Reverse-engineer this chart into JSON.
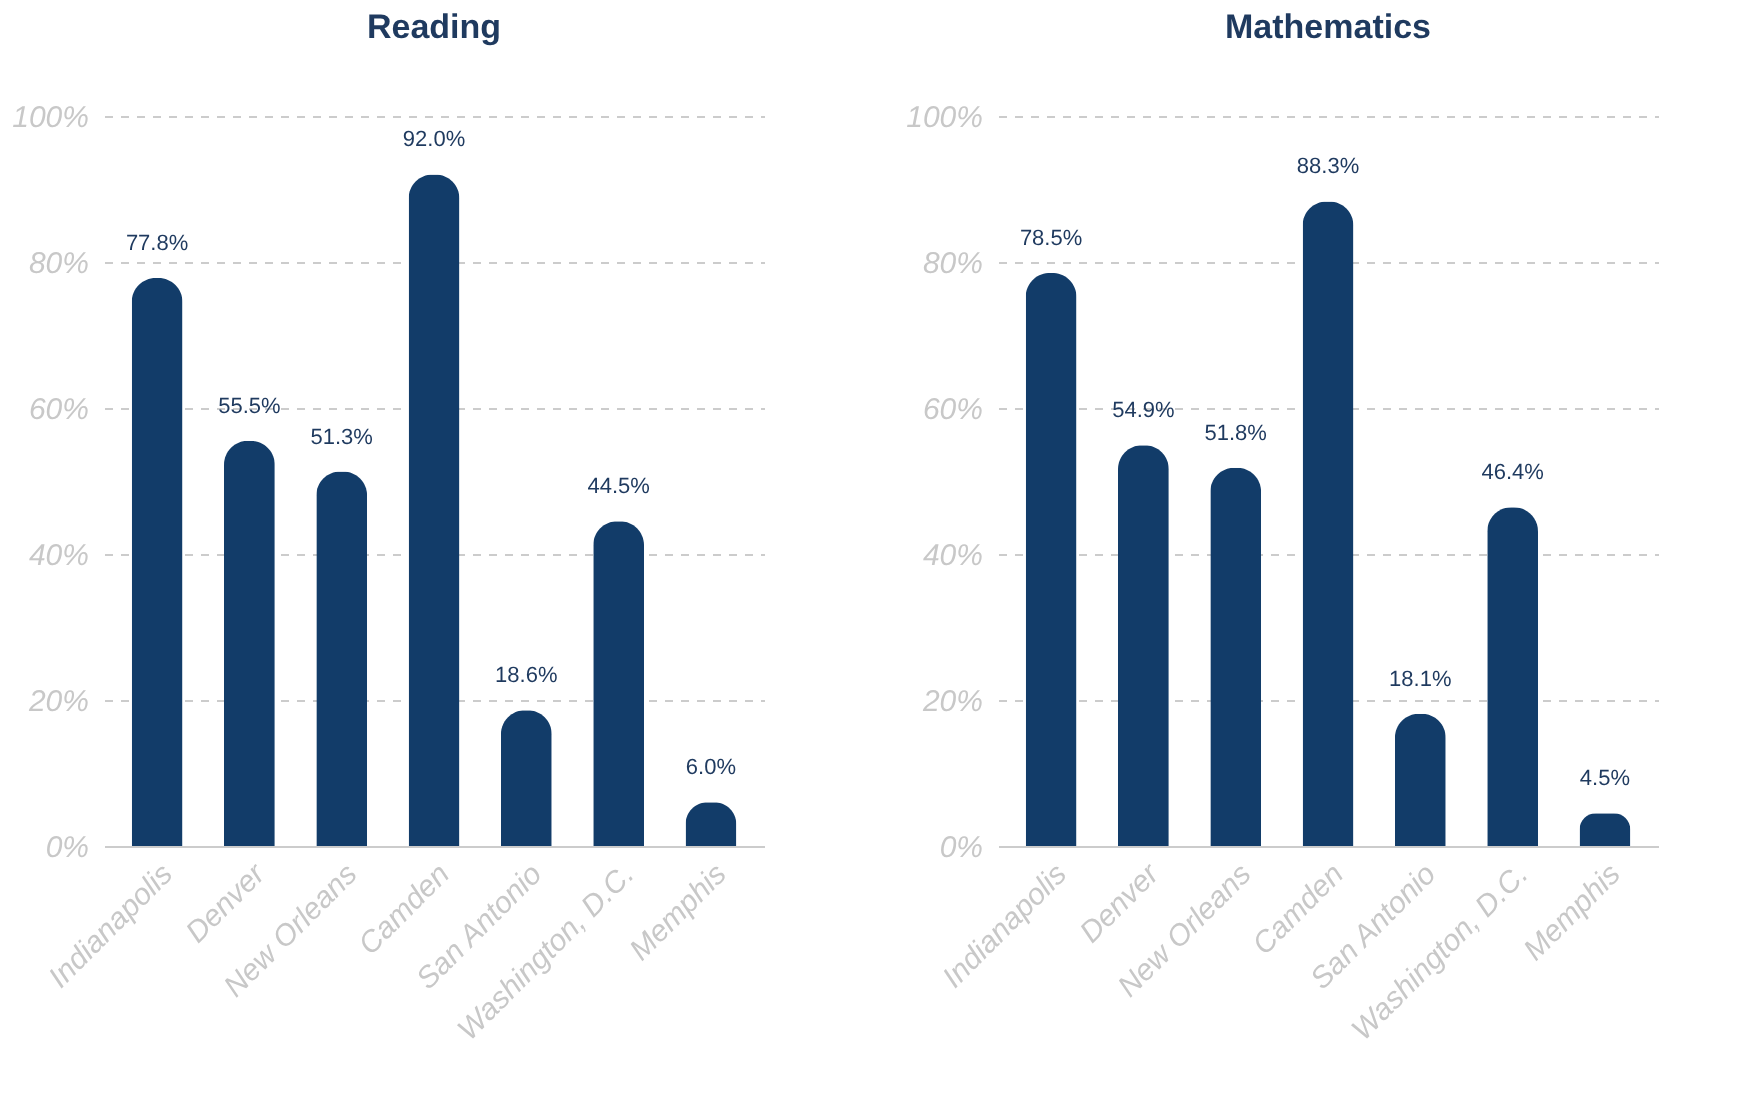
{
  "chart_data": [
    {
      "type": "bar",
      "title": "Reading",
      "categories": [
        "Indianapolis",
        "Denver",
        "New Orleans",
        "Camden",
        "San Antonio",
        "Washington, D.C.",
        "Memphis"
      ],
      "values": [
        77.8,
        55.5,
        51.3,
        92.0,
        18.6,
        44.5,
        6.0
      ],
      "value_labels": [
        "77.8%",
        "55.5%",
        "51.3%",
        "92.0%",
        "18.6%",
        "44.5%",
        "6.0%"
      ],
      "color": "#123c69",
      "ylim": [
        0,
        100
      ],
      "yticks": [
        {
          "value": 0,
          "label": "0%"
        },
        {
          "value": 20,
          "label": "20%"
        },
        {
          "value": 40,
          "label": "40%"
        },
        {
          "value": 60,
          "label": "60%"
        },
        {
          "value": 80,
          "label": "80%"
        },
        {
          "value": 100,
          "label": "100%"
        }
      ],
      "grid": "y"
    },
    {
      "type": "bar",
      "title": "Mathematics",
      "categories": [
        "Indianapolis",
        "Denver",
        "New Orleans",
        "Camden",
        "San Antonio",
        "Washington, D.C.",
        "Memphis"
      ],
      "values": [
        78.5,
        54.9,
        51.8,
        88.3,
        18.1,
        46.4,
        4.5
      ],
      "value_labels": [
        "78.5%",
        "54.9%",
        "51.8%",
        "88.3%",
        "18.1%",
        "46.4%",
        "4.5%"
      ],
      "color": "#123c69",
      "ylim": [
        0,
        100
      ],
      "yticks": [
        {
          "value": 0,
          "label": "0%"
        },
        {
          "value": 20,
          "label": "20%"
        },
        {
          "value": 40,
          "label": "40%"
        },
        {
          "value": 60,
          "label": "60%"
        },
        {
          "value": 80,
          "label": "80%"
        },
        {
          "value": 100,
          "label": "100%"
        }
      ],
      "grid": "y"
    }
  ]
}
